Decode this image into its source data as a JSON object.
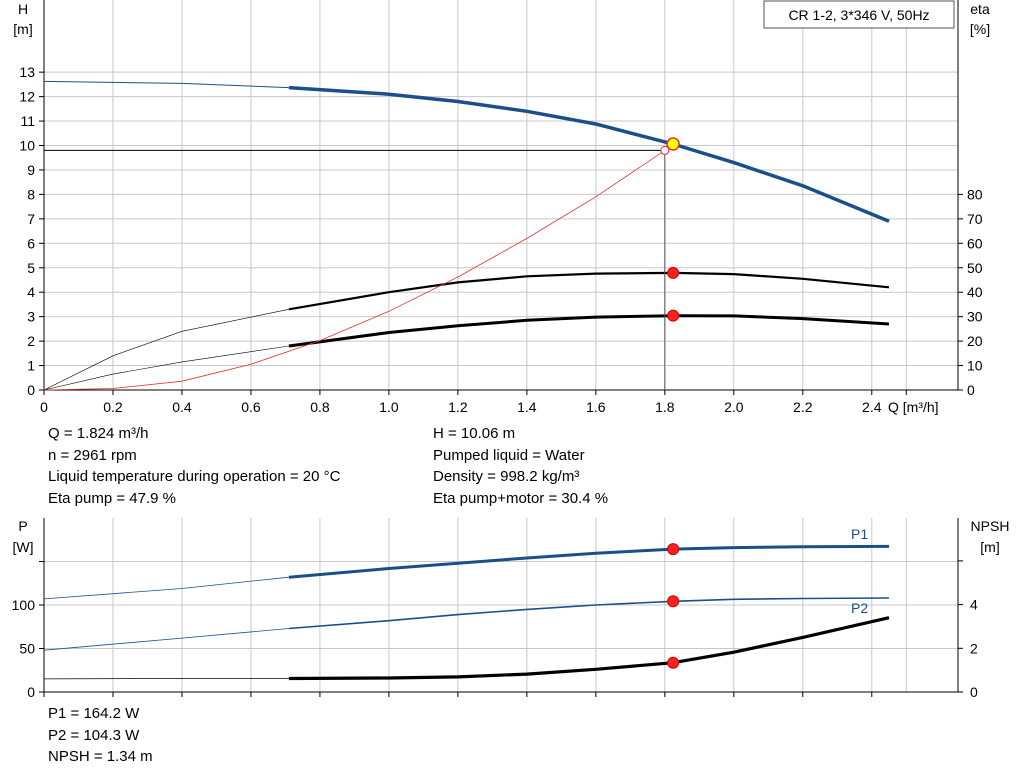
{
  "chart_data": [
    {
      "type": "line",
      "title": "CR 1-2, 3*346 V, 50Hz",
      "left_axis": {
        "label": [
          "H",
          "[m]"
        ],
        "range": [
          0,
          14
        ],
        "ticks": [
          0,
          1,
          2,
          3,
          4,
          5,
          6,
          7,
          8,
          9,
          10,
          11,
          12,
          13
        ]
      },
      "right_axis": {
        "label": [
          "eta",
          "[%]"
        ],
        "range": [
          0,
          80
        ],
        "ticks": [
          0,
          10,
          20,
          30,
          40,
          50,
          60,
          70,
          80
        ]
      },
      "x_axis": {
        "label": "Q [m³/h]",
        "range": [
          0,
          2.65
        ],
        "ticks": [
          "0",
          "0.2",
          "0.4",
          "0.6",
          "0.8",
          "1.0",
          "1.2",
          "1.4",
          "1.6",
          "1.8",
          "2.0",
          "2.2",
          "2.4"
        ],
        "tick_values": [
          0,
          0.2,
          0.4,
          0.6,
          0.8,
          1.0,
          1.2,
          1.4,
          1.6,
          1.8,
          2.0,
          2.2,
          2.4
        ]
      },
      "grid": true,
      "duty_point": {
        "q": 1.824,
        "h": 10.06,
        "h_required": 9.8,
        "q_required": 1.8
      },
      "series": [
        {
          "axis": "left",
          "color": "#1b4f8a",
          "points": [
            [
              0,
              12.62
            ],
            [
              0.4,
              12.54
            ],
            [
              0.71,
              12.37
            ],
            [
              1.0,
              12.1
            ],
            [
              1.2,
              11.8
            ],
            [
              1.4,
              11.4
            ],
            [
              1.6,
              10.88
            ],
            [
              1.824,
              10.06
            ],
            [
              2.0,
              9.3
            ],
            [
              2.2,
              8.35
            ],
            [
              2.45,
              6.9
            ]
          ]
        },
        {
          "axis": "right",
          "color": "#000000",
          "points": [
            [
              0,
              0
            ],
            [
              0.2,
              14
            ],
            [
              0.4,
              24
            ],
            [
              0.71,
              33
            ],
            [
              1.0,
              40
            ],
            [
              1.2,
              44
            ],
            [
              1.4,
              46.5
            ],
            [
              1.6,
              47.6
            ],
            [
              1.824,
              47.9
            ],
            [
              2.0,
              47.4
            ],
            [
              2.2,
              45.5
            ],
            [
              2.45,
              42
            ]
          ]
        },
        {
          "axis": "right",
          "color": "#000000",
          "points": [
            [
              0,
              0
            ],
            [
              0.2,
              6.5
            ],
            [
              0.4,
              11.5
            ],
            [
              0.71,
              18
            ],
            [
              1.0,
              23.5
            ],
            [
              1.2,
              26.3
            ],
            [
              1.4,
              28.5
            ],
            [
              1.6,
              29.8
            ],
            [
              1.824,
              30.4
            ],
            [
              2.0,
              30.3
            ],
            [
              2.2,
              29.2
            ],
            [
              2.45,
              27
            ]
          ]
        },
        {
          "axis": "left",
          "color": "#e23030",
          "points": [
            [
              0,
              0
            ],
            [
              0.2,
              0.06
            ],
            [
              0.4,
              0.36
            ],
            [
              0.6,
              1.05
            ],
            [
              0.8,
              2.02
            ],
            [
              1.0,
              3.22
            ],
            [
              1.2,
              4.62
            ],
            [
              1.4,
              6.2
            ],
            [
              1.6,
              7.9
            ],
            [
              1.8,
              9.8
            ]
          ]
        }
      ],
      "markers": [
        {
          "q": 1.824,
          "axis": "right",
          "value": 47.9
        },
        {
          "q": 1.824,
          "axis": "right",
          "value": 30.4
        }
      ],
      "info": {
        "left": [
          "Q = 1.824 m³/h",
          "n = 2961 rpm",
          "Liquid temperature during operation = 20 °C",
          "Eta pump = 47.9 %"
        ],
        "right": [
          "H = 10.06 m",
          "Pumped liquid = Water",
          "Density = 998.2 kg/m³",
          "Eta pump+motor = 30.4 %"
        ]
      }
    },
    {
      "type": "line",
      "left_axis": {
        "label": [
          "P",
          "[W]"
        ],
        "range": [
          0,
          190
        ],
        "ticks": [
          0,
          50,
          100,
          150
        ],
        "tick_labels": [
          "0",
          "50",
          "100",
          ""
        ]
      },
      "right_axis": {
        "label": [
          "NPSH",
          "[m]"
        ],
        "range": [
          0,
          7.6
        ],
        "ticks": [
          0,
          2,
          4,
          6
        ],
        "tick_labels": [
          "0",
          "2",
          "4",
          ""
        ]
      },
      "x_axis": {
        "range": [
          0,
          2.65
        ]
      },
      "grid": true,
      "series": [
        {
          "name": "P1",
          "axis": "left",
          "color": "#1b4f8a",
          "points": [
            [
              0,
              107
            ],
            [
              0.4,
              119
            ],
            [
              0.71,
              132
            ],
            [
              1.0,
              142
            ],
            [
              1.2,
              148
            ],
            [
              1.4,
              154
            ],
            [
              1.6,
              159.5
            ],
            [
              1.824,
              164.2
            ],
            [
              2.0,
              166
            ],
            [
              2.2,
              167
            ],
            [
              2.45,
              167.3
            ]
          ]
        },
        {
          "name": "P2",
          "axis": "left",
          "color": "#1b4f8a",
          "points": [
            [
              0,
              48
            ],
            [
              0.4,
              62
            ],
            [
              0.71,
              73
            ],
            [
              1.0,
              82
            ],
            [
              1.2,
              89
            ],
            [
              1.4,
              95
            ],
            [
              1.6,
              100
            ],
            [
              1.824,
              104.3
            ],
            [
              2.0,
              106.5
            ],
            [
              2.2,
              107.5
            ],
            [
              2.45,
              108
            ]
          ]
        },
        {
          "name": "NPSH",
          "axis": "right",
          "color": "#000000",
          "points": [
            [
              0,
              0.6
            ],
            [
              0.4,
              0.62
            ],
            [
              0.71,
              0.62
            ],
            [
              1.0,
              0.64
            ],
            [
              1.2,
              0.69
            ],
            [
              1.4,
              0.82
            ],
            [
              1.6,
              1.04
            ],
            [
              1.824,
              1.34
            ],
            [
              2.0,
              1.82
            ],
            [
              2.2,
              2.5
            ],
            [
              2.45,
              3.4
            ]
          ]
        }
      ],
      "markers": [
        {
          "q": 1.824,
          "axis": "left",
          "value": 164.2
        },
        {
          "q": 1.824,
          "axis": "left",
          "value": 104.3
        },
        {
          "q": 1.824,
          "axis": "right",
          "value": 1.34
        }
      ],
      "info": {
        "left": [
          "P1 = 164.2 W",
          "P2 = 104.3 W",
          "NPSH = 1.34 m"
        ]
      }
    }
  ]
}
